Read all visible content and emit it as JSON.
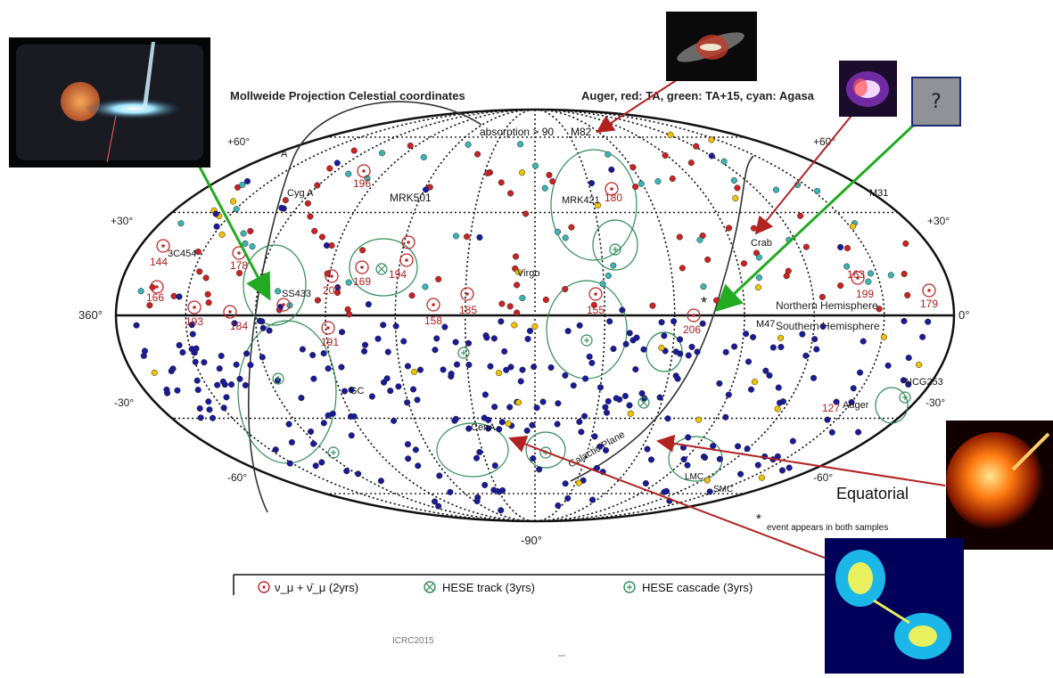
{
  "header": {
    "left": "Mollweide Projection Celestial coordinates",
    "right": "Auger, red: TA, green: TA+15, cyan: Agasa"
  },
  "absorption_label": "absorption > 90",
  "lat_labels": {
    "p60": "+60°",
    "p30": "+30°",
    "m30": "-30°",
    "m60": "-60°",
    "m90": "-90°"
  },
  "lon_labels": {
    "left": "360°",
    "right": "0°"
  },
  "hemisphere": {
    "north": "Northern Hemisphere",
    "south": "Southern Hemisphere"
  },
  "sources": [
    "M82",
    "MRK421",
    "MRK501",
    "Cyg A",
    "3C454",
    "SS433",
    "Virgo",
    "Crab",
    "M31",
    "M47",
    "NCG253",
    "GC",
    "CenA",
    "Galactic Plane",
    "LMC",
    "SMC",
    "Auger",
    "A"
  ],
  "event_ids": [
    "196",
    "178",
    "144",
    "166",
    "193",
    "184",
    "200",
    "169",
    "194",
    "191",
    "158",
    "185",
    "155",
    "206",
    "180",
    "199",
    "179",
    "163",
    "127"
  ],
  "equatorial_label": "Equatorial",
  "both_samples_note": "event appears in both samples",
  "both_samples_marker": "*",
  "legend": {
    "numu": "ν_μ + ν̄_μ (2yrs)",
    "track": "HESE track (3yrs)",
    "cascade": "HESE cascade (3yrs)"
  },
  "footer_text": "ICRC2015",
  "question_box": "?",
  "colors": {
    "arrow_red": "#b22222",
    "arrow_green": "#22aa22",
    "auger": "#1a1a9a",
    "ta_red": "#cc2222",
    "ta_green": "#2e8b57",
    "agasa_cyan": "#3cb4b4",
    "yellow": "#f2c200",
    "neutrino": "#c0282a",
    "hese": "#2e8b57"
  }
}
